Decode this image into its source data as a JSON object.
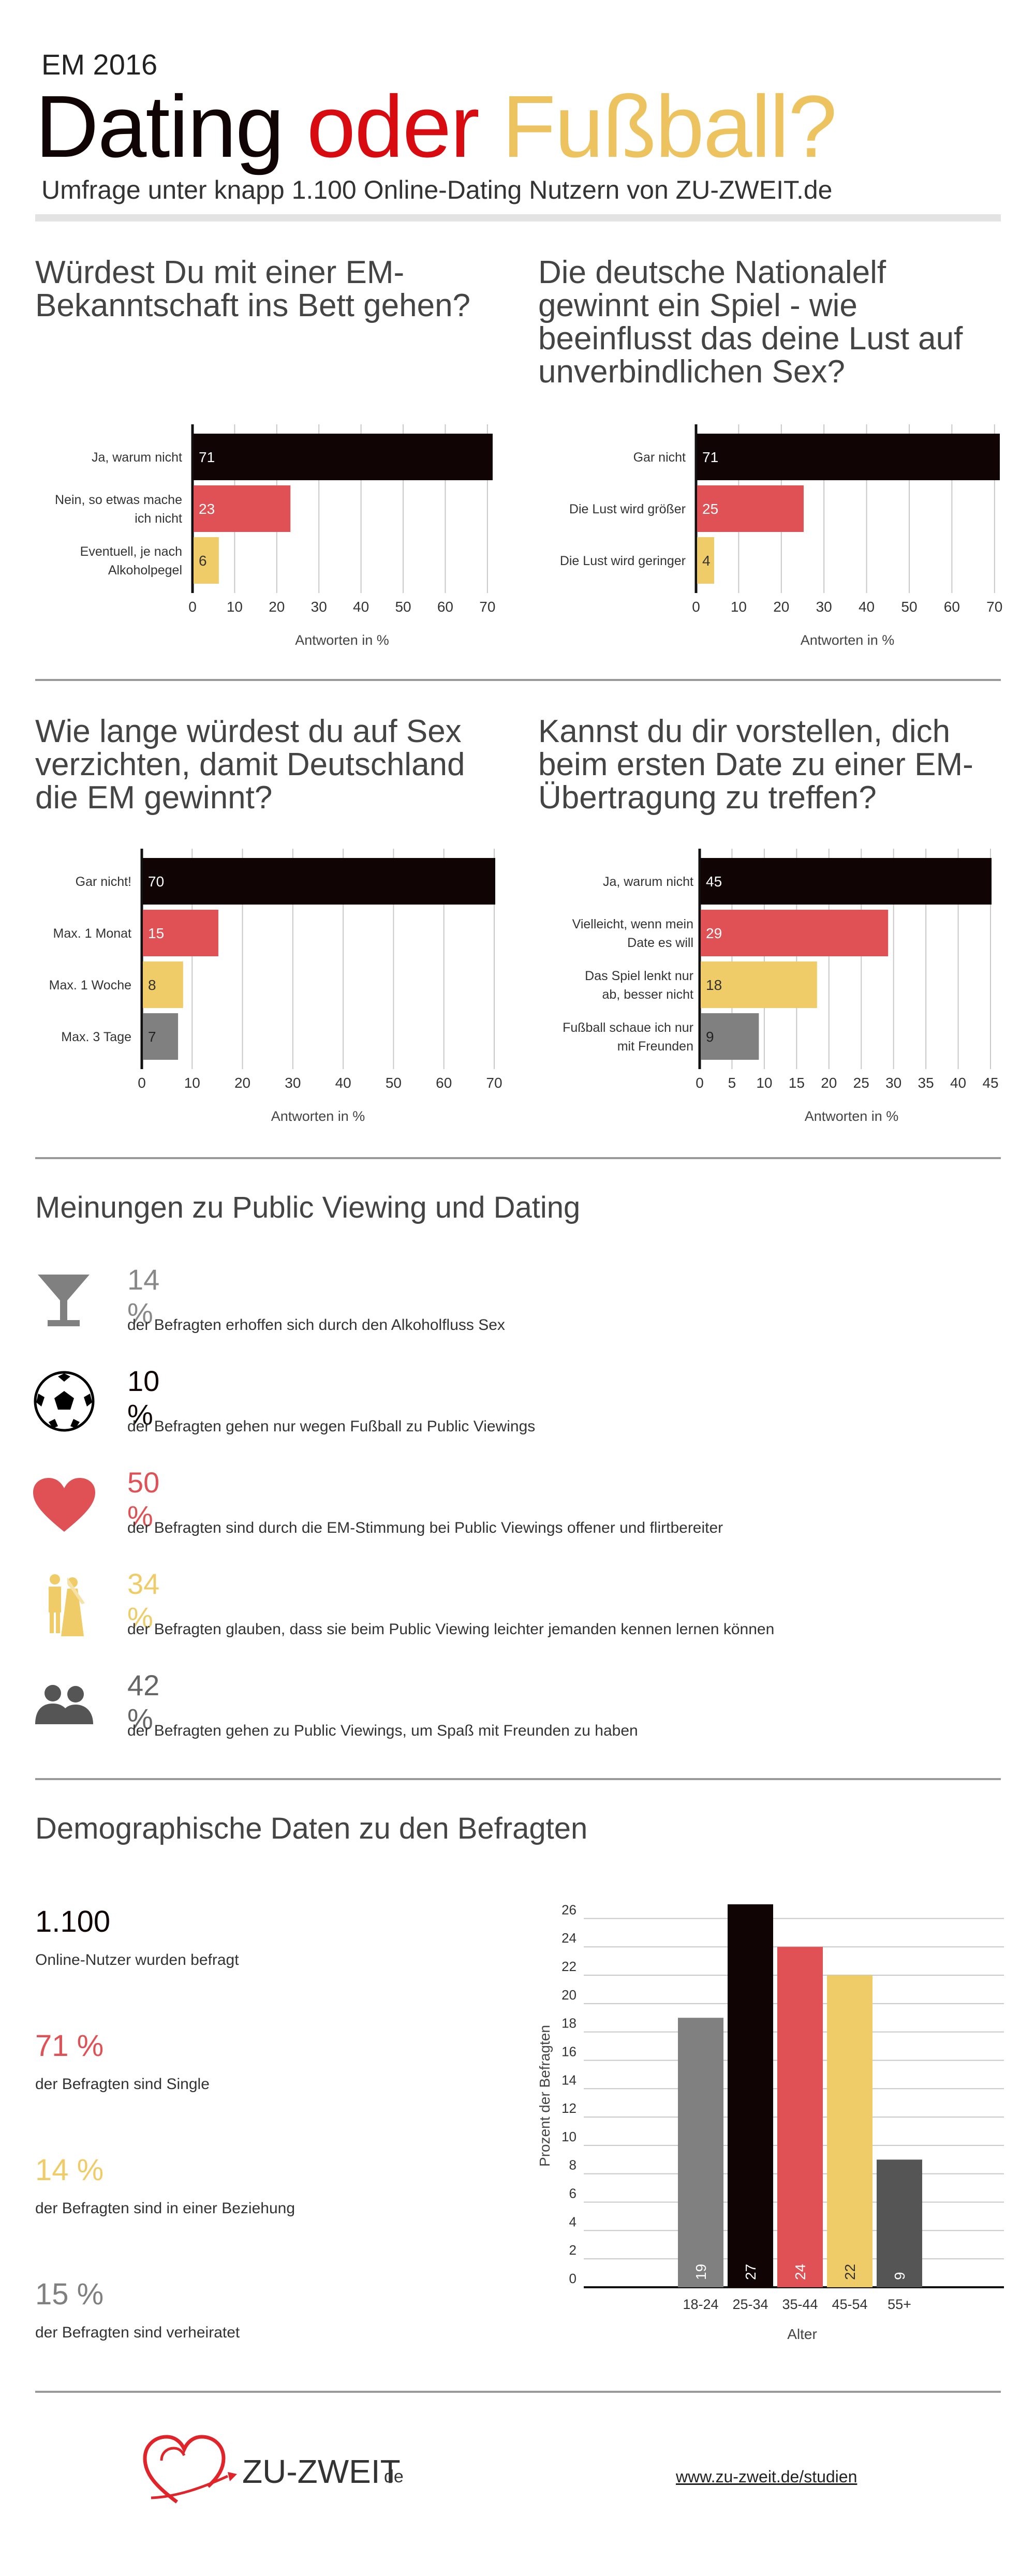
{
  "header": {
    "kicker": "EM 2016",
    "title_word1": "Dating",
    "title_word2": "oder",
    "title_word3": "Fußball?",
    "subtitle": "Umfrage unter knapp 1.100 Online-Dating Nutzern von ZU-ZWEIT.de"
  },
  "colors": {
    "black": "#110404",
    "red": "#e05155",
    "yellow": "#f0cc68",
    "gray": "#808080",
    "darkgray": "#555555"
  },
  "chart_data": [
    {
      "type": "bar",
      "orientation": "horizontal",
      "title": "Würdest Du mit einer EM-Bekanntschaft ins Bett gehen?",
      "categories": [
        "Ja, warum nicht",
        "Nein, so etwas mache ich nicht",
        "Eventuell, je nach Alkoholpegel"
      ],
      "values": [
        71,
        23,
        6
      ],
      "colors": [
        "#110404",
        "#e05155",
        "#f0cc68"
      ],
      "xlabel": "Antworten in %",
      "xticks": [
        0,
        10,
        20,
        30,
        40,
        50,
        60,
        70
      ],
      "xlim": [
        0,
        71
      ]
    },
    {
      "type": "bar",
      "orientation": "horizontal",
      "title": "Die deutsche Nationalelf gewinnt ein Spiel - wie beeinflusst das deine Lust auf unverbindlichen Sex?",
      "categories": [
        "Gar nicht",
        "Die Lust wird größer",
        "Die Lust wird geringer"
      ],
      "values": [
        71,
        25,
        4
      ],
      "colors": [
        "#110404",
        "#e05155",
        "#f0cc68"
      ],
      "xlabel": "Antworten in %",
      "xticks": [
        0,
        10,
        20,
        30,
        40,
        50,
        60,
        70
      ],
      "xlim": [
        0,
        71
      ]
    },
    {
      "type": "bar",
      "orientation": "horizontal",
      "title": "Wie lange würdest du auf Sex verzichten, damit Deutschland die EM gewinnt?",
      "categories": [
        "Gar nicht!",
        "Max. 1 Monat",
        "Max. 1 Woche",
        "Max. 3 Tage"
      ],
      "values": [
        70,
        15,
        8,
        7
      ],
      "colors": [
        "#110404",
        "#e05155",
        "#f0cc68",
        "#808080"
      ],
      "xlabel": "Antworten in %",
      "xticks": [
        0,
        10,
        20,
        30,
        40,
        50,
        60,
        70
      ],
      "xlim": [
        0,
        70
      ]
    },
    {
      "type": "bar",
      "orientation": "horizontal",
      "title": "Kannst du dir vorstellen, dich beim ersten Date zu einer EM-Übertragung zu treffen?",
      "categories": [
        "Ja, warum nicht",
        "Vielleicht, wenn mein Date es will",
        "Das Spiel lenkt nur ab, besser nicht",
        "Fußball schaue ich nur mit Freunden"
      ],
      "values": [
        45,
        29,
        18,
        9
      ],
      "colors": [
        "#110404",
        "#e05155",
        "#f0cc68",
        "#808080"
      ],
      "xlabel": "Antworten in %",
      "xticks": [
        0,
        5,
        10,
        15,
        20,
        25,
        30,
        35,
        40,
        45
      ],
      "xlim": [
        0,
        47
      ]
    },
    {
      "type": "bar",
      "orientation": "vertical",
      "title": "Demographische Daten zu den Befragten",
      "categories": [
        "18-24",
        "25-34",
        "35-44",
        "45-54",
        "55+"
      ],
      "values": [
        19,
        27,
        24,
        22,
        9
      ],
      "colors": [
        "#808080",
        "#110404",
        "#e05155",
        "#f0cc68",
        "#555555"
      ],
      "xlabel": "Alter",
      "ylabel": "Prozent der Befragten",
      "yticks": [
        0,
        2,
        4,
        6,
        8,
        10,
        12,
        14,
        16,
        18,
        20,
        22,
        24,
        26
      ],
      "ylim": [
        0,
        27
      ]
    }
  ],
  "opinions": {
    "title": "Meinungen zu Public Viewing und Dating",
    "items": [
      {
        "icon": "cocktail-glass-icon",
        "pct": "14 %",
        "text": "der Befragten erhoffen sich durch den Alkoholfluss Sex",
        "color": "#808080"
      },
      {
        "icon": "soccer-ball-icon",
        "pct": "10 %",
        "text": "der Befragten gehen nur wegen Fußball zu Public Viewings",
        "color": "#110404"
      },
      {
        "icon": "heart-icon",
        "pct": "50 %",
        "text": "der Befragten sind durch die EM-Stimmung bei Public Viewings offener und flirtbereiter",
        "color": "#e05155"
      },
      {
        "icon": "wedding-couple-icon",
        "pct": "34 %",
        "text": "der Befragten glauben, dass sie beim Public Viewing leichter jemanden kennen lernen können",
        "color": "#f0cc68"
      },
      {
        "icon": "people-icon",
        "pct": "42 %",
        "text": "der Befragten gehen zu Public Viewings, um Spaß mit Freunden zu haben",
        "color": "#666666"
      }
    ]
  },
  "demographics": {
    "title": "Demographische Daten zu den Befragten",
    "stats": [
      {
        "value": "1.100",
        "text": "Online-Nutzer wurden befragt",
        "color": "#110404"
      },
      {
        "value": "71 %",
        "text": "der Befragten sind Single",
        "color": "#e05155"
      },
      {
        "value": "14 %",
        "text": "der Befragten sind in einer Beziehung",
        "color": "#f0cc68"
      },
      {
        "value": "15 %",
        "text": "der Befragten sind verheiratet",
        "color": "#808080"
      }
    ]
  },
  "footer": {
    "logo_text": "ZU-ZWEIT",
    "logo_suffix": "de",
    "url": "www.zu-zweit.de/studien"
  }
}
